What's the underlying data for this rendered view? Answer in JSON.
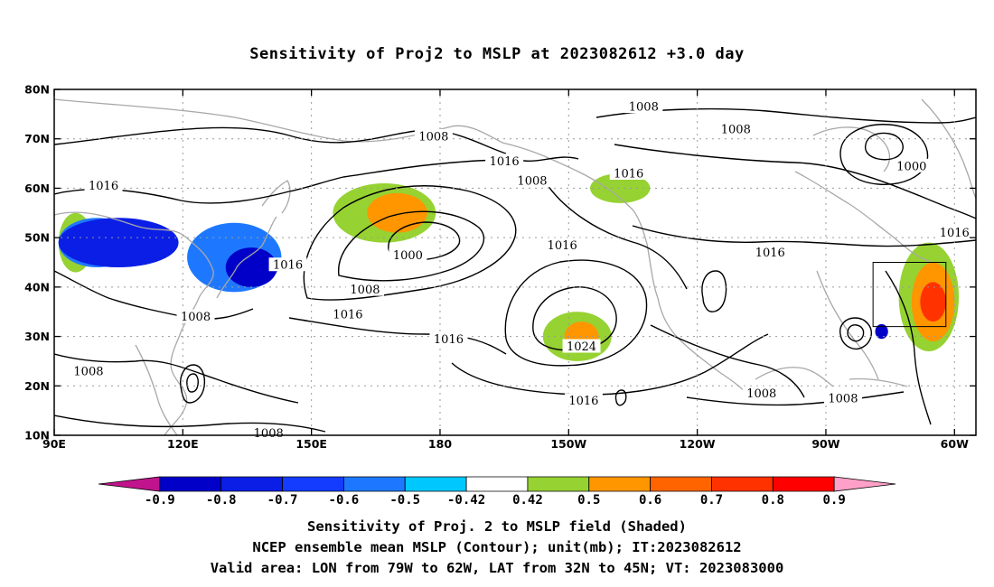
{
  "title": "Sensitivity of Proj2 to MSLP at 2023082612 +3.0 day",
  "map": {
    "lon_range": [
      90,
      305
    ],
    "lat_range": [
      10,
      80
    ],
    "lon_ticks": [
      {
        "lon": 90,
        "label": "90E"
      },
      {
        "lon": 120,
        "label": "120E"
      },
      {
        "lon": 150,
        "label": "150E"
      },
      {
        "lon": 180,
        "label": "180"
      },
      {
        "lon": 210,
        "label": "150W"
      },
      {
        "lon": 240,
        "label": "120W"
      },
      {
        "lon": 270,
        "label": "90W"
      },
      {
        "lon": 300,
        "label": "60W"
      }
    ],
    "lat_ticks": [
      {
        "lat": 10,
        "label": "10N"
      },
      {
        "lat": 20,
        "label": "20N"
      },
      {
        "lat": 30,
        "label": "30N"
      },
      {
        "lat": 40,
        "label": "40N"
      },
      {
        "lat": 50,
        "label": "50N"
      },
      {
        "lat": 60,
        "label": "60N"
      },
      {
        "lat": 70,
        "label": "70N"
      },
      {
        "lat": 80,
        "label": "80N"
      }
    ],
    "gridlines": true,
    "valid_box": {
      "lon_min": 281,
      "lon_max": 298,
      "lat_min": 32,
      "lat_max": 45
    },
    "contour_labels": [
      {
        "text": "1008",
        "lon": 178.5,
        "lat": 70.5
      },
      {
        "text": "1008",
        "lon": 227.5,
        "lat": 76.5
      },
      {
        "text": "1008",
        "lon": 249,
        "lat": 72
      },
      {
        "text": "1000",
        "lon": 290,
        "lat": 64.5
      },
      {
        "text": "1016",
        "lon": 195,
        "lat": 65.5
      },
      {
        "text": "1008",
        "lon": 201.5,
        "lat": 61.5
      },
      {
        "text": "1016",
        "lon": 101.5,
        "lat": 60.5
      },
      {
        "text": "1016",
        "lon": 224,
        "lat": 63
      },
      {
        "text": "1016",
        "lon": 144.5,
        "lat": 44.5
      },
      {
        "text": "1000",
        "lon": 172.5,
        "lat": 46.5
      },
      {
        "text": "1016",
        "lon": 208.5,
        "lat": 48.5
      },
      {
        "text": "1016",
        "lon": 257,
        "lat": 47
      },
      {
        "text": "1016",
        "lon": 300,
        "lat": 51
      },
      {
        "text": "1008",
        "lon": 162.5,
        "lat": 39.5
      },
      {
        "text": "1016",
        "lon": 158.5,
        "lat": 34.5
      },
      {
        "text": "1008",
        "lon": 123,
        "lat": 34
      },
      {
        "text": "1016",
        "lon": 182,
        "lat": 29.5
      },
      {
        "text": "1024",
        "lon": 213,
        "lat": 28
      },
      {
        "text": "1008",
        "lon": 98,
        "lat": 23
      },
      {
        "text": "1008",
        "lon": 255,
        "lat": 18.5
      },
      {
        "text": "1008",
        "lon": 274,
        "lat": 17.5
      },
      {
        "text": "1016",
        "lon": 213.5,
        "lat": 17
      },
      {
        "text": "1008",
        "lon": 140,
        "lat": 10.5
      }
    ],
    "shading": [
      {
        "level": 0.5,
        "lon": 95,
        "lat": 49,
        "rlon": 4,
        "rlat": 6
      },
      {
        "level": -0.5,
        "lon": 100,
        "lat": 49,
        "rlon": 9,
        "rlat": 5
      },
      {
        "level": -0.7,
        "lon": 105,
        "lat": 49,
        "rlon": 14,
        "rlat": 5
      },
      {
        "level": -0.5,
        "lon": 132,
        "lat": 46,
        "rlon": 11,
        "rlat": 7
      },
      {
        "level": -0.8,
        "lon": 136,
        "lat": 44,
        "rlon": 6,
        "rlat": 4
      },
      {
        "level": 0.5,
        "lon": 167,
        "lat": 55,
        "rlon": 12,
        "rlat": 6
      },
      {
        "level": 0.6,
        "lon": 170,
        "lat": 55,
        "rlon": 7,
        "rlat": 4
      },
      {
        "level": 0.5,
        "lon": 212,
        "lat": 30,
        "rlon": 8,
        "rlat": 5
      },
      {
        "level": 0.6,
        "lon": 213,
        "lat": 30,
        "rlon": 4,
        "rlat": 3
      },
      {
        "level": 0.5,
        "lon": 222,
        "lat": 60,
        "rlon": 7,
        "rlat": 3
      },
      {
        "level": 0.5,
        "lon": 294,
        "lat": 38,
        "rlon": 7,
        "rlat": 11
      },
      {
        "level": 0.6,
        "lon": 295,
        "lat": 37,
        "rlon": 5,
        "rlat": 8
      },
      {
        "level": 0.8,
        "lon": 295,
        "lat": 37,
        "rlon": 3,
        "rlat": 4
      },
      {
        "level": -0.8,
        "lon": 283,
        "lat": 31,
        "rlon": 1.5,
        "rlat": 1.5
      }
    ]
  },
  "colorbar": {
    "colors": [
      "#c0148c",
      "#0000c8",
      "#0a1ee6",
      "#143cff",
      "#1e78ff",
      "#00c8ff",
      "#ffffff",
      "#96d232",
      "#ff9600",
      "#ff6400",
      "#ff3200",
      "#ff0000",
      "#ffa0c8"
    ],
    "labels": [
      "-0.9",
      "-0.8",
      "-0.7",
      "-0.6",
      "-0.5",
      "-0.42",
      "0.42",
      "0.5",
      "0.6",
      "0.7",
      "0.8",
      "0.9"
    ]
  },
  "captions": {
    "line1": "Sensitivity of Proj. 2 to MSLP field (Shaded)",
    "line2": "NCEP ensemble mean MSLP (Contour); unit(mb); IT:2023082612",
    "line3": "Valid area: LON from 79W to 62W, LAT from 32N to 45N; VT: 2023083000"
  }
}
